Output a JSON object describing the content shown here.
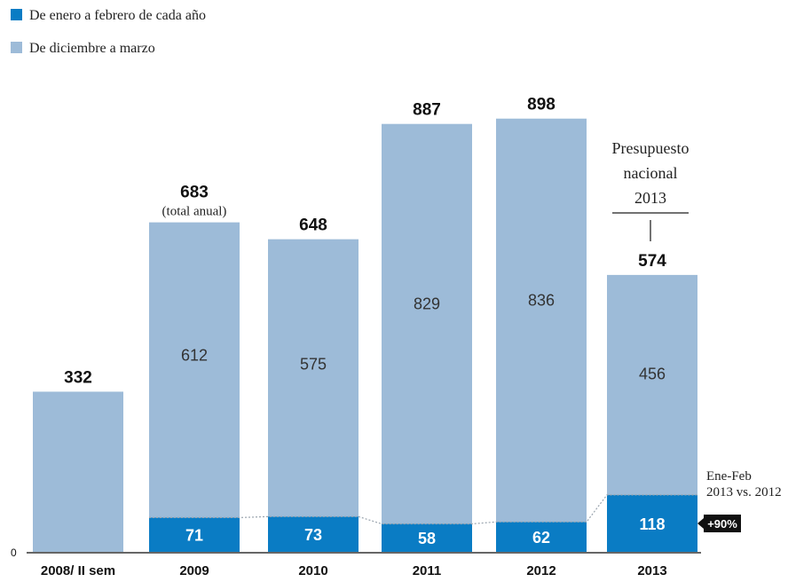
{
  "colors": {
    "dark_blue": "#0a7cc4",
    "light_blue": "#9dbbd8",
    "baseline": "#333333",
    "dotted": "#9aa4ae"
  },
  "legend": [
    {
      "label": "De enero a febrero de cada año",
      "color": "#0a7cc4"
    },
    {
      "label": "De diciembre a marzo",
      "color": "#9dbbd8"
    }
  ],
  "annotations": {
    "budget_line1": "Presupuesto",
    "budget_line2": "nacional",
    "budget_line3": "2013",
    "cmp_line1": "Ene-Feb",
    "cmp_line2": "2013 vs. 2012",
    "badge": "+90%",
    "zero_tick": "0"
  },
  "chart_data": {
    "type": "bar",
    "categories": [
      "2008/ II sem",
      "2009",
      "2010",
      "2011",
      "2012",
      "2013"
    ],
    "series": [
      {
        "name": "De enero a febrero de cada año",
        "values": [
          null,
          71,
          73,
          58,
          62,
          118
        ]
      },
      {
        "name": "De diciembre a marzo",
        "values": [
          332,
          612,
          575,
          829,
          836,
          456
        ]
      }
    ],
    "totals": [
      332,
      683,
      648,
      887,
      898,
      574
    ],
    "total_notes": [
      "",
      "(total anual)",
      "",
      "",
      "",
      ""
    ],
    "ylim": [
      0,
      960
    ]
  }
}
